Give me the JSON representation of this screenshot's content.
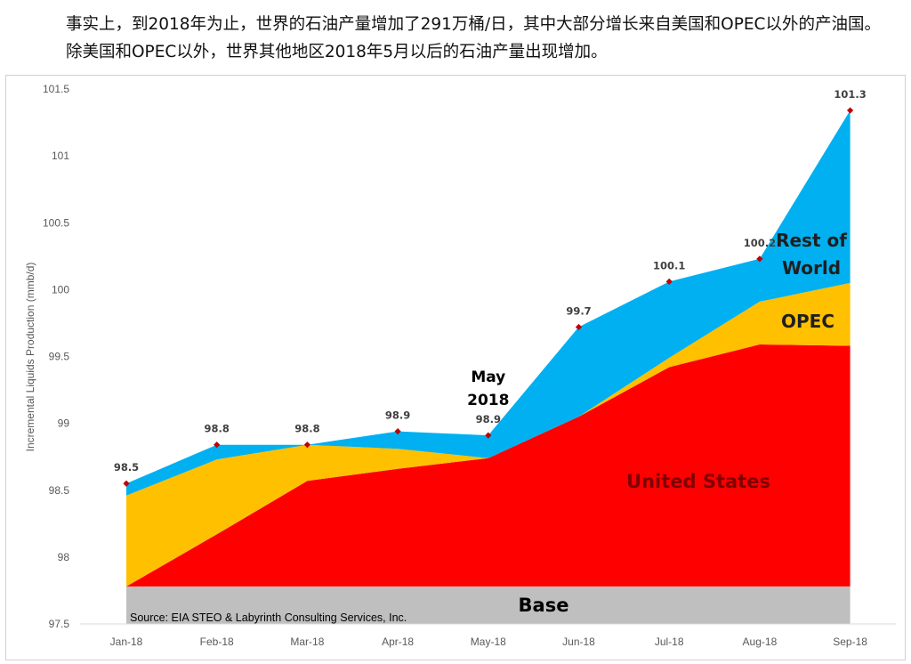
{
  "intro_text": "事实上，到2018年为止，世界的石油产量增加了291万桶/日，其中大部分增长来自美国和OPEC以外的产油国。除美国和OPEC以外，世界其他地区2018年5月以后的石油产量出现增加。",
  "colors": {
    "united_states": "#ff0000",
    "opec": "#ffc000",
    "rest_of_world": "#00b0f0",
    "base": "#bfbfbf",
    "markers": "#c00000"
  },
  "chart_data": {
    "type": "area",
    "stacked": true,
    "ylabel": "Incremental Liquids Production (mmb/d)",
    "ylim": [
      97.5,
      101.5
    ],
    "yticks": [
      "97.5",
      "98",
      "98.5",
      "99",
      "99.5",
      "100",
      "100.5",
      "101",
      "101.5"
    ],
    "categories": [
      "Jan-18",
      "Feb-18",
      "Mar-18",
      "Apr-18",
      "May-18",
      "Jun-18",
      "Jul-18",
      "Aug-18",
      "Sep-18"
    ],
    "base_level": 97.78,
    "series": [
      {
        "name": "United States",
        "cumulative_top": [
          97.78,
          98.17,
          98.57,
          98.66,
          98.74,
          99.05,
          99.42,
          99.59,
          99.58
        ]
      },
      {
        "name": "OPEC",
        "cumulative_top": [
          98.46,
          98.73,
          98.84,
          98.81,
          98.74,
          99.05,
          99.49,
          99.91,
          100.05
        ]
      },
      {
        "name": "Rest of World",
        "cumulative_top": [
          98.55,
          98.84,
          98.84,
          98.94,
          98.91,
          99.72,
          100.06,
          100.23,
          101.34
        ]
      }
    ],
    "total_labels": [
      "98.5",
      "98.8",
      "98.8",
      "98.9",
      "98.9",
      "99.7",
      "100.1",
      "100.2",
      "101.3"
    ],
    "area_labels": {
      "base": "Base",
      "united_states": "United States",
      "opec": "OPEC",
      "rest_of_world": "Rest of World"
    },
    "annotation": "May 2018",
    "source": "Source:  EIA STEO & Labyrinth Consulting Services, Inc.",
    "grid": false,
    "legend": "none"
  }
}
